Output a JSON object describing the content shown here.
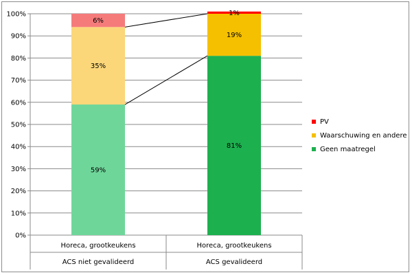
{
  "chart_data": {
    "type": "bar",
    "stacked": true,
    "percent": true,
    "categories": [
      [
        "Horeca, grootkeukens",
        "ACS niet gevalideerd"
      ],
      [
        "Horeca, grootkeukens",
        "ACS gevalideerd"
      ]
    ],
    "series": [
      {
        "name": "Geen maatregel",
        "values": [
          59,
          81
        ],
        "labels": [
          "59%",
          "81%"
        ],
        "colors": [
          "#6fd69a",
          "#1db04f"
        ]
      },
      {
        "name": "Waarschuwing en andere",
        "values": [
          35,
          19
        ],
        "labels": [
          "35%",
          "19%"
        ],
        "colors": [
          "#fbd77a",
          "#f5c000"
        ]
      },
      {
        "name": "PV",
        "values": [
          6,
          1
        ],
        "labels": [
          "6%",
          "1%"
        ],
        "colors": [
          "#f57b7b",
          "#ff0000"
        ]
      }
    ],
    "legend": {
      "placement": "right",
      "items": [
        {
          "name": "PV",
          "color": "#ff0000"
        },
        {
          "name": "Waarschuwing en andere",
          "color": "#f5c000"
        },
        {
          "name": "Geen maatregel",
          "color": "#1db04f"
        }
      ]
    },
    "ylim": [
      0,
      100
    ],
    "yticks": [
      "0%",
      "10%",
      "20%",
      "30%",
      "40%",
      "50%",
      "60%",
      "70%",
      "80%",
      "90%",
      "100%"
    ],
    "grid": true,
    "series_lines": true
  }
}
